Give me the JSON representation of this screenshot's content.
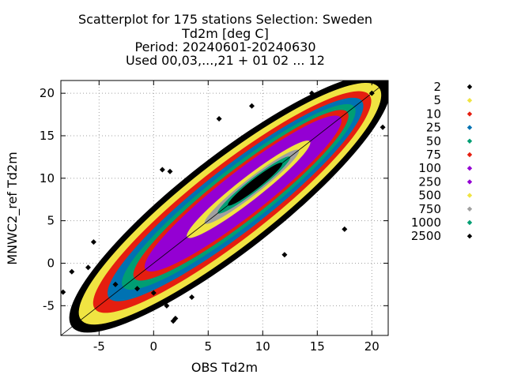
{
  "chart_data": {
    "type": "scatter",
    "title_lines": [
      "Scatterplot for  175 stations Selection: Sweden",
      "Td2m [deg C]",
      "Period: 20240601-20240630",
      "Used 00,03,...,21 + 01 02 ... 12"
    ],
    "xlabel": "OBS Td2m",
    "ylabel": "MNWC2_ref Td2m",
    "xlim": [
      -8.5,
      21.5
    ],
    "ylim": [
      -8.5,
      21.5
    ],
    "xticks": [
      -5,
      0,
      5,
      10,
      15,
      20
    ],
    "yticks": [
      -5,
      0,
      5,
      10,
      15,
      20
    ],
    "grid": true,
    "diagonal_line": true,
    "legend_position": "right",
    "legend_title": "",
    "density_levels": [
      {
        "label": "2",
        "color": "#000000"
      },
      {
        "label": "5",
        "color": "#f0e442"
      },
      {
        "label": "10",
        "color": "#e51e10"
      },
      {
        "label": "25",
        "color": "#0072b2"
      },
      {
        "label": "50",
        "color": "#009e73"
      },
      {
        "label": "75",
        "color": "#e51e10"
      },
      {
        "label": "100",
        "color": "#9400d3"
      },
      {
        "label": "250",
        "color": "#9400d3"
      },
      {
        "label": "500",
        "color": "#f0e442"
      },
      {
        "label": "750",
        "color": "#a0a0a0"
      },
      {
        "label": "1000",
        "color": "#009e73"
      },
      {
        "label": "2500",
        "color": "#000000"
      }
    ],
    "density_bands": [
      {
        "level": "2",
        "color": "#000000",
        "center": [
          7,
          7
        ],
        "along": 17.5,
        "across": 4.2
      },
      {
        "level": "5",
        "color": "#f0e442",
        "center": [
          7,
          7
        ],
        "along": 16.5,
        "across": 3.7
      },
      {
        "level": "10",
        "color": "#e51e10",
        "center": [
          7.2,
          7.2
        ],
        "along": 15.2,
        "across": 3.2
      },
      {
        "level": "25",
        "color": "#0072b2",
        "center": [
          7.5,
          7.5
        ],
        "along": 14.0,
        "across": 2.8
      },
      {
        "level": "50",
        "color": "#009e73",
        "center": [
          7.8,
          7.8
        ],
        "along": 12.8,
        "across": 2.45
      },
      {
        "level": "75",
        "color": "#e51e10",
        "center": [
          8.0,
          8.0
        ],
        "along": 11.8,
        "across": 2.15
      },
      {
        "level": "100",
        "color": "#9400d3",
        "center": [
          8.2,
          8.2
        ],
        "along": 10.8,
        "across": 1.9
      },
      {
        "level": "250",
        "color": "#9400d3",
        "center": [
          8.5,
          8.5
        ],
        "along": 8.8,
        "across": 1.45
      },
      {
        "level": "500",
        "color": "#f0e442",
        "center": [
          8.7,
          8.7
        ],
        "along": 6.8,
        "across": 1.0
      },
      {
        "level": "750",
        "color": "#a0a0a0",
        "center": [
          9.0,
          9.0
        ],
        "along": 5.2,
        "across": 0.72
      },
      {
        "level": "1000",
        "color": "#009e73",
        "center": [
          9.2,
          9.2
        ],
        "along": 4.0,
        "across": 0.55
      },
      {
        "level": "2500",
        "color": "#000000",
        "center": [
          9.3,
          9.3
        ],
        "along": 3.0,
        "across": 0.42
      }
    ],
    "outliers": [
      {
        "x": -8.3,
        "y": -3.4
      },
      {
        "x": -7.5,
        "y": -1.0
      },
      {
        "x": -6.0,
        "y": -0.5
      },
      {
        "x": -5.5,
        "y": 2.5
      },
      {
        "x": -3.5,
        "y": -2.5
      },
      {
        "x": -1.5,
        "y": -3.0
      },
      {
        "x": 0.0,
        "y": -3.5
      },
      {
        "x": 1.2,
        "y": -5.0
      },
      {
        "x": 1.8,
        "y": -6.8
      },
      {
        "x": 2.0,
        "y": -6.5
      },
      {
        "x": 3.5,
        "y": -4.0
      },
      {
        "x": 0.8,
        "y": 11.0
      },
      {
        "x": 1.5,
        "y": 10.8
      },
      {
        "x": 6.0,
        "y": 17.0
      },
      {
        "x": 9.0,
        "y": 18.5
      },
      {
        "x": 14.5,
        "y": 20.0
      },
      {
        "x": 21.0,
        "y": 16.0
      },
      {
        "x": 20.0,
        "y": 20.0
      },
      {
        "x": 17.5,
        "y": 4.0
      },
      {
        "x": 12.0,
        "y": 1.0
      }
    ]
  }
}
